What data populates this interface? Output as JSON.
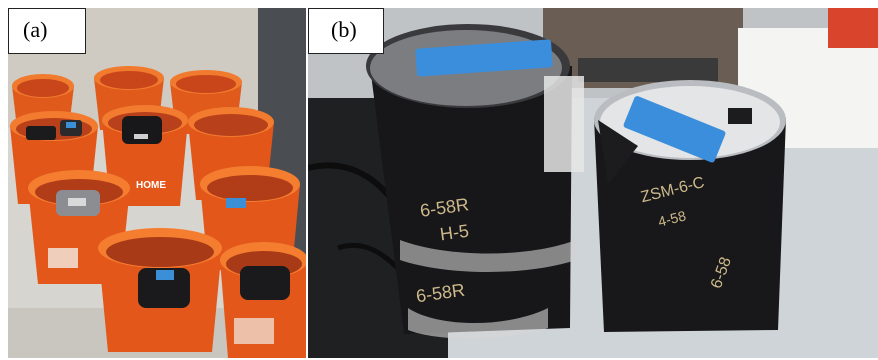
{
  "figure": {
    "panel_a": {
      "label": "(a)",
      "description_icon": "orange-buckets-with-asphalt-samples"
    },
    "panel_b": {
      "label": "(b)",
      "description_icon": "two-asphalt-core-specimens",
      "specimen_left_text": [
        "6-58R",
        "H-5",
        "6-58R"
      ],
      "specimen_right_text": [
        "ZSM-6-C",
        "4-58",
        "6-58"
      ]
    }
  },
  "colors": {
    "bucket_orange": "#e8571c",
    "asphalt_black": "#1c1c1e",
    "tape_blue": "#2f8fd8",
    "background_wall": "#d8d4cc"
  }
}
